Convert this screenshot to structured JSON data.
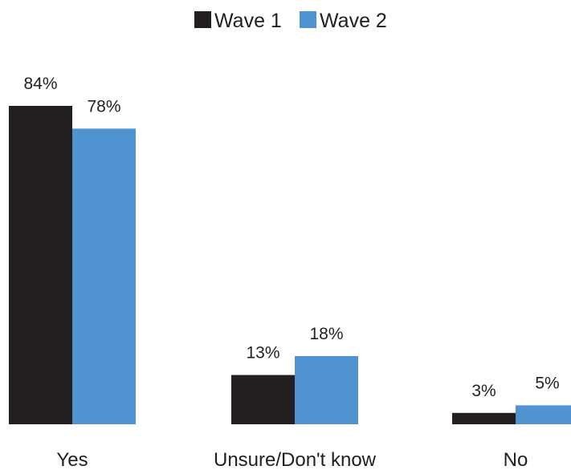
{
  "chart_data": {
    "type": "bar",
    "title": "",
    "xlabel": "",
    "ylabel": "",
    "ylim": [
      0,
      84
    ],
    "grid": false,
    "legend_position": "top-center",
    "categories": [
      "Yes",
      "Unsure/Don't know",
      "No"
    ],
    "series": [
      {
        "name": "Wave 1",
        "color": "#231f20",
        "values": [
          84,
          13,
          3
        ],
        "labels": [
          "84%",
          "13%",
          "3%"
        ]
      },
      {
        "name": "Wave 2",
        "color": "#4f93d1",
        "values": [
          78,
          18,
          5
        ],
        "labels": [
          "78%",
          "18%",
          "5%"
        ]
      }
    ]
  }
}
